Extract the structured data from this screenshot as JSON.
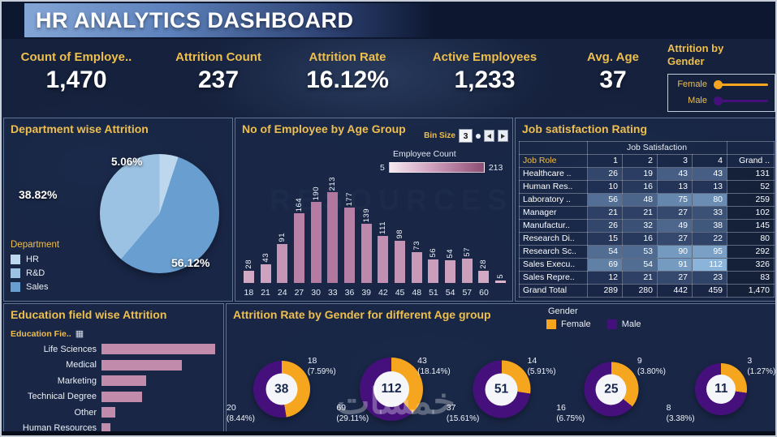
{
  "title": "HR ANALYTICS DASHBOARD",
  "colors": {
    "background": "#15213d",
    "gold": "#efbf4d",
    "female": "#f6a51e",
    "male": "#45107c",
    "bar_pink": "#c18cab",
    "heat_low": "#1d2b50",
    "heat_high": "#8ab4da"
  },
  "icons": {
    "sort": "▦"
  },
  "watermarks": {
    "brand": "خمسات",
    "background": "RESOURCES"
  },
  "kpis": [
    {
      "label": "Count of Employe..",
      "value": "1,470"
    },
    {
      "label": "Attrition Count",
      "value": "237"
    },
    {
      "label": "Attrition Rate",
      "value": "16.12%"
    },
    {
      "label": "Active Employees",
      "value": "1,233"
    },
    {
      "label": "Avg. Age",
      "value": "37"
    }
  ],
  "gender_legend": {
    "title": "Attrition by Gender",
    "items": [
      {
        "label": "Female",
        "color": "#f6a51e"
      },
      {
        "label": "Male",
        "color": "#45107c"
      }
    ]
  },
  "chart_data": [
    {
      "id": "department_attrition_pie",
      "type": "pie",
      "title": "Department wise Attrition",
      "legend_title": "Department",
      "legend": [
        {
          "label": "HR",
          "color": "#bcd7ee"
        },
        {
          "label": "R&D",
          "color": "#9cc2e3"
        },
        {
          "label": "Sales",
          "color": "#699fd0"
        }
      ],
      "slices_clockwise": [
        {
          "label": "HR",
          "value": 5.06,
          "value_label": "5.06%",
          "color": "#bcd7ee"
        },
        {
          "label": "Sales",
          "value": 56.12,
          "value_label": "56.12%",
          "color": "#699fd0"
        },
        {
          "label": "R&D",
          "value": 38.82,
          "value_label": "38.82%",
          "color": "#9cc2e3"
        }
      ]
    },
    {
      "id": "employees_by_age",
      "type": "bar",
      "title": "No of Employee by Age Group",
      "bin_size_label": "Bin Size",
      "bin_size": "3",
      "legend": {
        "label": "Employee Count",
        "min": "5",
        "max": "213"
      },
      "categories": [
        "18",
        "21",
        "24",
        "27",
        "30",
        "33",
        "36",
        "39",
        "42",
        "45",
        "48",
        "51",
        "54",
        "57",
        "60",
        ""
      ],
      "values": [
        28,
        43,
        91,
        164,
        190,
        213,
        177,
        139,
        111,
        98,
        73,
        56,
        54,
        57,
        28,
        5
      ],
      "scale_max": 213
    },
    {
      "id": "job_satisfaction_table",
      "type": "table",
      "title": "Job satisfaction Rating",
      "group_header": "Job Satisfaction",
      "columns": [
        "Job Role",
        "1",
        "2",
        "3",
        "4",
        "Grand .."
      ],
      "rows": [
        {
          "role": "Healthcare ..",
          "vals": [
            26,
            19,
            43,
            43
          ],
          "total": 131
        },
        {
          "role": "Human Res..",
          "vals": [
            10,
            16,
            13,
            13
          ],
          "total": 52
        },
        {
          "role": "Laboratory ..",
          "vals": [
            56,
            48,
            75,
            80
          ],
          "total": 259
        },
        {
          "role": "Manager",
          "vals": [
            21,
            21,
            27,
            33
          ],
          "total": 102
        },
        {
          "role": "Manufactur..",
          "vals": [
            26,
            32,
            49,
            38
          ],
          "total": 145
        },
        {
          "role": "Research Di..",
          "vals": [
            15,
            16,
            27,
            22
          ],
          "total": 80
        },
        {
          "role": "Research Sc..",
          "vals": [
            54,
            53,
            90,
            95
          ],
          "total": 292
        },
        {
          "role": "Sales Execu..",
          "vals": [
            69,
            54,
            91,
            112
          ],
          "total": 326
        },
        {
          "role": "Sales Repre..",
          "vals": [
            12,
            21,
            27,
            23
          ],
          "total": 83
        }
      ],
      "grand_total": {
        "label": "Grand Total",
        "vals": [
          289,
          280,
          442,
          459
        ],
        "total": "1,470"
      }
    },
    {
      "id": "education_field_attrition",
      "type": "bar",
      "orientation": "horizontal",
      "title": "Education field wise Attrition",
      "axis_label": "Education Fie..",
      "categories": [
        "Life Sciences",
        "Medical",
        "Marketing",
        "Technical Degree",
        "Other",
        "Human Resources"
      ],
      "values": [
        89,
        63,
        35,
        32,
        11,
        7
      ],
      "scale_max": 89
    },
    {
      "id": "attrition_by_gender_age",
      "type": "donut_group",
      "title": "Attrition Rate by Gender for different Age group",
      "legend_title": "Gender",
      "female_color": "#f6a51e",
      "male_color": "#45107c",
      "legend": [
        {
          "label": "Female"
        },
        {
          "label": "Male"
        }
      ],
      "donuts": [
        {
          "total": 38,
          "female": {
            "count": 18,
            "pct": "(7.59%)"
          },
          "male": {
            "count": 20,
            "pct": "(8.44%)"
          }
        },
        {
          "total": 112,
          "female": {
            "count": 43,
            "pct": "(18.14%)"
          },
          "male": {
            "count": 69,
            "pct": "(29.11%)"
          }
        },
        {
          "total": 51,
          "female": {
            "count": 14,
            "pct": "(5.91%)"
          },
          "male": {
            "count": 37,
            "pct": "(15.61%)"
          }
        },
        {
          "total": 25,
          "female": {
            "count": 9,
            "pct": "(3.80%)"
          },
          "male": {
            "count": 16,
            "pct": "(6.75%)"
          }
        },
        {
          "total": 11,
          "female": {
            "count": 3,
            "pct": "(1.27%)"
          },
          "male": {
            "count": 8,
            "pct": "(3.38%)"
          }
        }
      ]
    }
  ]
}
